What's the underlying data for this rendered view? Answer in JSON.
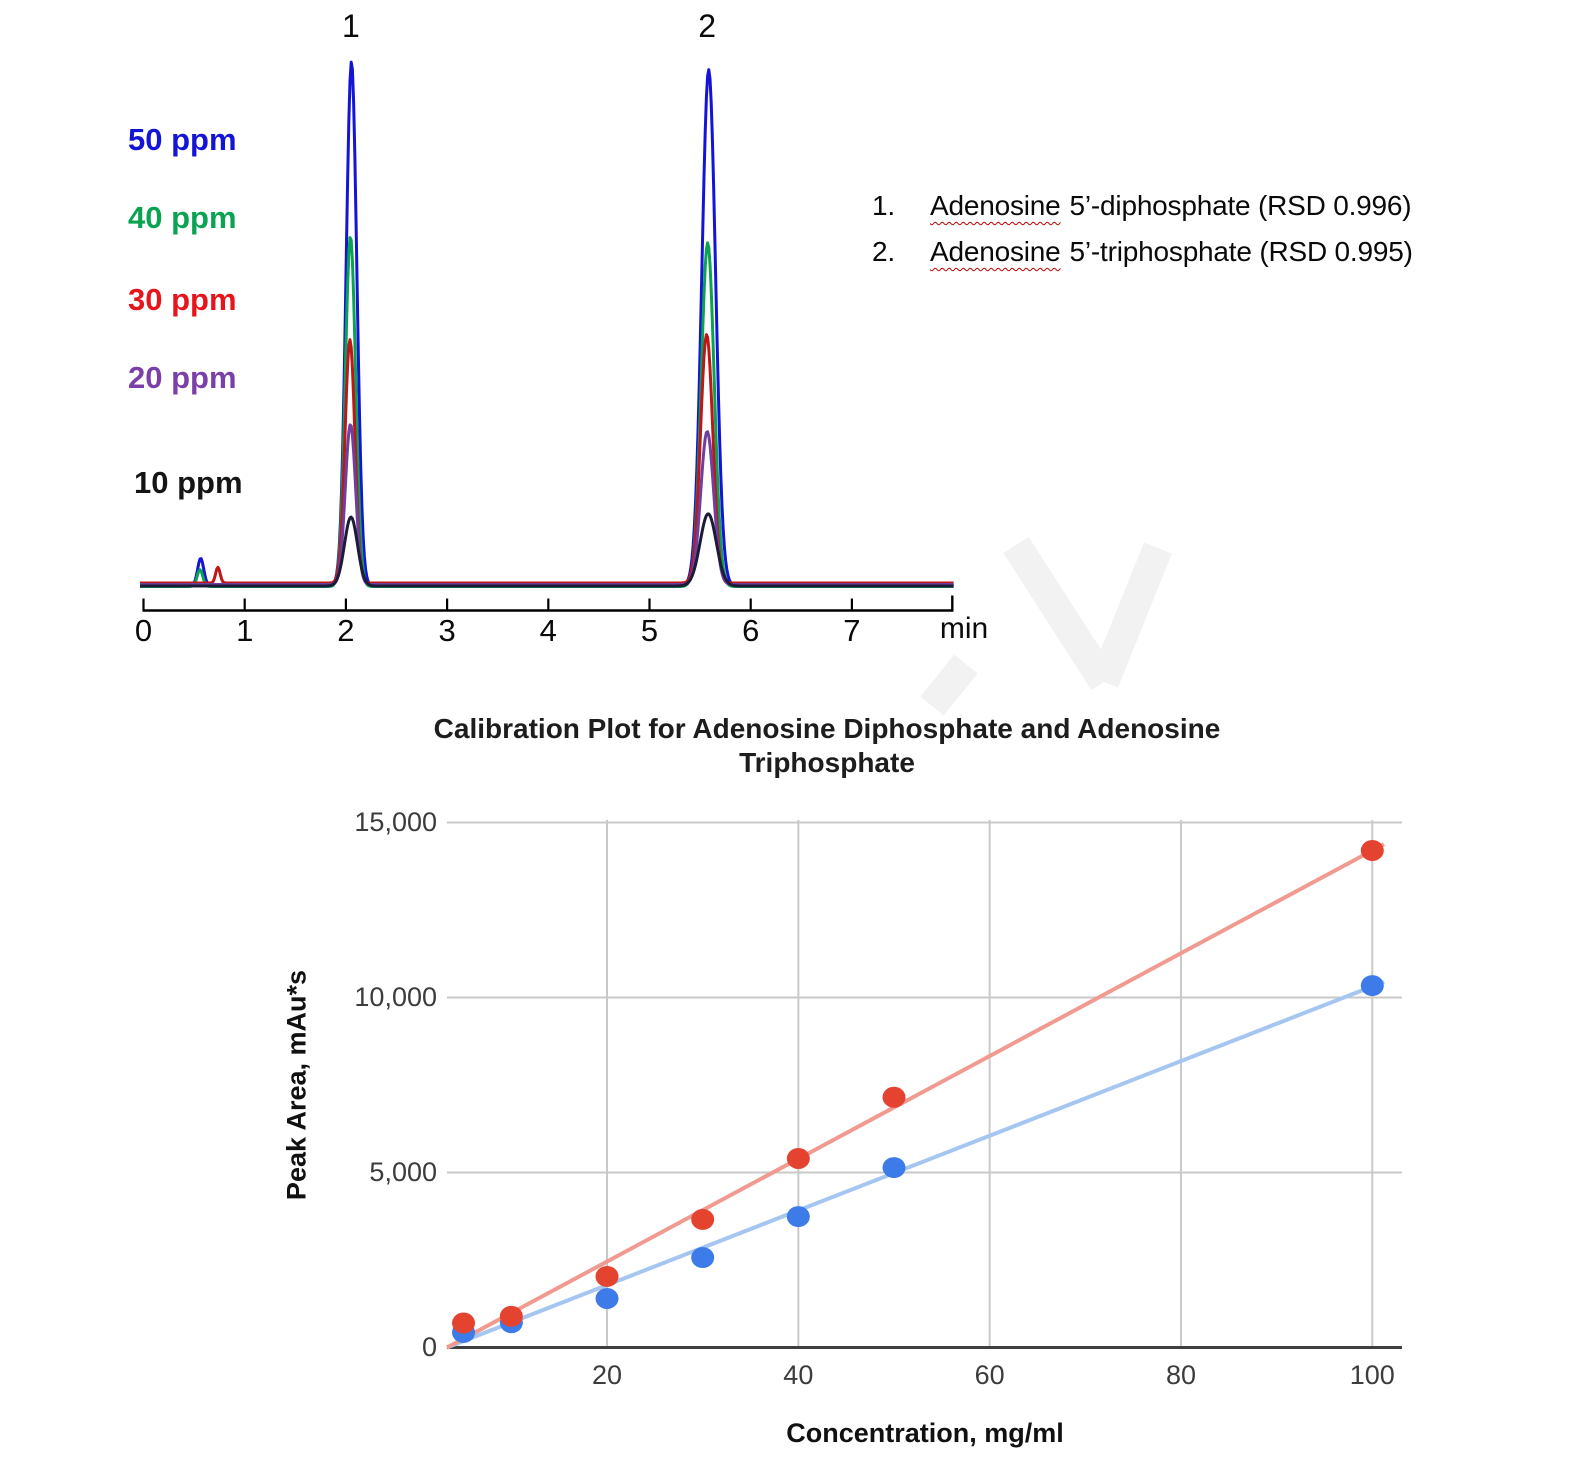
{
  "chromatogram": {
    "concentration_labels": [
      {
        "label": "50 ppm",
        "color": "#1414d8"
      },
      {
        "label": "40 ppm",
        "color": "#0aa352"
      },
      {
        "label": "30 ppm",
        "color": "#e8141c"
      },
      {
        "label": "20 ppm",
        "color": "#7a3fa8"
      },
      {
        "label": "10 ppm",
        "color": "#151515"
      }
    ],
    "axis_unit": "min",
    "legend": [
      {
        "index": "1.",
        "underlined": "Adenosine",
        "rest": "5’-diphosphate (RSD 0.996)"
      },
      {
        "index": "2.",
        "underlined": "Adenosine",
        "rest": "5’-triphosphate (RSD 0.995)"
      }
    ]
  },
  "calibration": {
    "title": "Calibration Plot for Adenosine Diphosphate and Adenosine Triphosphate",
    "ylabel": "Peak Area, mAu*s",
    "xlabel": "Concentration, mg/ml"
  },
  "chart_data": [
    {
      "type": "line",
      "xlabel": "min",
      "x_range": [
        0,
        8
      ],
      "x_ticks": [
        0,
        1,
        2,
        3,
        4,
        5,
        6,
        7
      ],
      "grid": false,
      "series": [
        {
          "name": "50 ppm",
          "color": "#1414d8",
          "peaks": [
            {
              "t": 0.565,
              "h": 0.05,
              "w": 0.03
            },
            {
              "t": 2.055,
              "h": 0.965,
              "w": 0.053
            },
            {
              "t": 5.585,
              "h": 0.95,
              "w": 0.068
            }
          ]
        },
        {
          "name": "40 ppm",
          "color": "#0aa352",
          "peaks": [
            {
              "t": 0.558,
              "h": 0.031,
              "w": 0.028
            },
            {
              "t": 2.045,
              "h": 0.645,
              "w": 0.051
            },
            {
              "t": 5.575,
              "h": 0.633,
              "w": 0.064
            }
          ]
        },
        {
          "name": "30 ppm",
          "color": "#bf1717",
          "peaks": [
            {
              "t": 0.735,
              "h": 0.029,
              "w": 0.022
            },
            {
              "t": 2.04,
              "h": 0.448,
              "w": 0.049
            },
            {
              "t": 5.565,
              "h": 0.458,
              "w": 0.061
            }
          ]
        },
        {
          "name": "20 ppm",
          "color": "#6f3fa0",
          "peaks": [
            {
              "t": 2.045,
              "h": 0.295,
              "w": 0.051
            },
            {
              "t": 5.57,
              "h": 0.282,
              "w": 0.064
            }
          ]
        },
        {
          "name": "10 ppm",
          "color": "#1c1c38",
          "peaks": [
            {
              "t": 2.05,
              "h": 0.127,
              "w": 0.064
            },
            {
              "t": 5.58,
              "h": 0.133,
              "w": 0.08
            }
          ]
        }
      ],
      "peak_annotations": [
        {
          "label": "1",
          "t": 2.05,
          "compound": "Adenosine 5’-diphosphate",
          "rsd": "0.996"
        },
        {
          "label": "2",
          "t": 5.57,
          "compound": "Adenosine 5’-triphosphate",
          "rsd": "0.995"
        }
      ]
    },
    {
      "type": "scatter",
      "title": "Calibration Plot for Adenosine Diphosphate and Adenosine Triphosphate",
      "xlabel": "Concentration, mg/ml",
      "ylabel": "Peak Area, mAu*s",
      "x": [
        5,
        10,
        20,
        30,
        40,
        50,
        100
      ],
      "xticks": [
        20,
        40,
        60,
        80,
        100
      ],
      "yticks": [
        0,
        5000,
        10000,
        15000
      ],
      "xlim": [
        3,
        103
      ],
      "ylim": [
        0,
        15000
      ],
      "grid": true,
      "series": [
        {
          "name": "Adenosine Diphosphate",
          "color": "#e4432f",
          "trend_color": "#f09a90",
          "values": [
            700,
            890,
            2030,
            3660,
            5400,
            7150,
            14200
          ],
          "trend": {
            "slope": 146.9,
            "intercept": -490
          }
        },
        {
          "name": "Adenosine Triphosphate",
          "color": "#3d7ce8",
          "trend_color": "#a6c6f2",
          "values": [
            430,
            710,
            1400,
            2570,
            3740,
            5140,
            10340
          ],
          "trend": {
            "slope": 107.5,
            "intercept": -434
          }
        }
      ]
    }
  ]
}
